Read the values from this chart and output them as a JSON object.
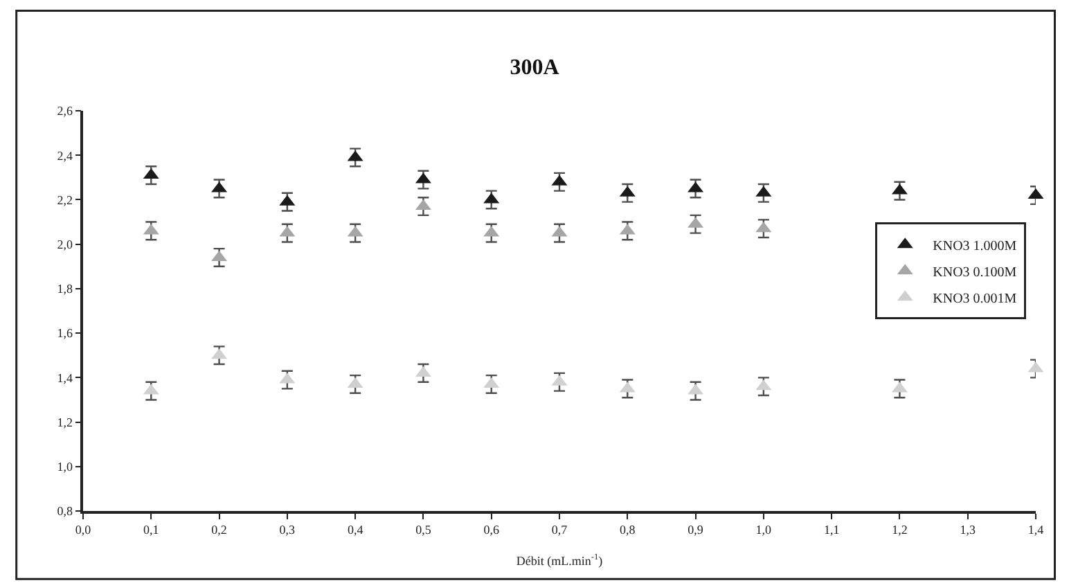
{
  "chart_data": {
    "type": "scatter",
    "title": "300A",
    "xlabel": "Débit (mL.min$^{-1}$)",
    "x": [
      0.1,
      0.2,
      0.3,
      0.4,
      0.5,
      0.6,
      0.7,
      0.8,
      0.9,
      1.0,
      1.2,
      1.4
    ],
    "series": [
      {
        "name": "KNO3 1.000M",
        "color": "#1a1a1a",
        "values": [
          2.31,
          2.25,
          2.19,
          2.39,
          2.29,
          2.2,
          2.28,
          2.23,
          2.25,
          2.23,
          2.24,
          2.22
        ],
        "errors": [
          0.04,
          0.04,
          0.04,
          0.04,
          0.04,
          0.04,
          0.04,
          0.04,
          0.04,
          0.04,
          0.04,
          0.04
        ]
      },
      {
        "name": "KNO3 0.100M",
        "color": "#a6a6a6",
        "values": [
          2.06,
          1.94,
          2.05,
          2.05,
          2.17,
          2.05,
          2.05,
          2.06,
          2.09,
          2.07,
          null,
          null
        ],
        "errors": [
          0.04,
          0.04,
          0.04,
          0.04,
          0.04,
          0.04,
          0.04,
          0.04,
          0.04,
          0.04,
          null,
          null
        ]
      },
      {
        "name": "KNO3 0.001M",
        "color": "#d0d0d0",
        "values": [
          1.34,
          1.5,
          1.39,
          1.37,
          1.42,
          1.37,
          1.38,
          1.35,
          1.34,
          1.36,
          1.35,
          1.44
        ],
        "errors": [
          0.04,
          0.04,
          0.04,
          0.04,
          0.04,
          0.04,
          0.04,
          0.04,
          0.04,
          0.04,
          0.04,
          0.04
        ]
      }
    ],
    "marker": "triangle",
    "legend": "right",
    "xlim": [
      0.0,
      1.4
    ],
    "xticks": [
      {
        "value": 0.0,
        "label": "0,0"
      },
      {
        "value": 0.1,
        "label": "0,1"
      },
      {
        "value": 0.2,
        "label": "0,2"
      },
      {
        "value": 0.3,
        "label": "0,3"
      },
      {
        "value": 0.4,
        "label": "0,4"
      },
      {
        "value": 0.5,
        "label": "0,5"
      },
      {
        "value": 0.6,
        "label": "0,6"
      },
      {
        "value": 0.7,
        "label": "0,7"
      },
      {
        "value": 0.8,
        "label": "0,8"
      },
      {
        "value": 0.9,
        "label": "0,9"
      },
      {
        "value": 1.0,
        "label": "1,0"
      },
      {
        "value": 1.1,
        "label": "1,1"
      },
      {
        "value": 1.2,
        "label": "1,2"
      },
      {
        "value": 1.3,
        "label": "1,3"
      },
      {
        "value": 1.4,
        "label": "1,4"
      }
    ],
    "ylim": [
      0.8,
      2.6
    ],
    "yticks": [
      {
        "value": 0.8,
        "label": "0,8"
      },
      {
        "value": 1.0,
        "label": "1,0"
      },
      {
        "value": 1.2,
        "label": "1,2"
      },
      {
        "value": 1.4,
        "label": "1,4"
      },
      {
        "value": 1.6,
        "label": "1,6"
      },
      {
        "value": 1.8,
        "label": "1,8"
      },
      {
        "value": 2.0,
        "label": "2,0"
      },
      {
        "value": 2.2,
        "label": "2,2"
      },
      {
        "value": 2.4,
        "label": "2,4"
      },
      {
        "value": 2.6,
        "label": "2,6"
      }
    ]
  }
}
